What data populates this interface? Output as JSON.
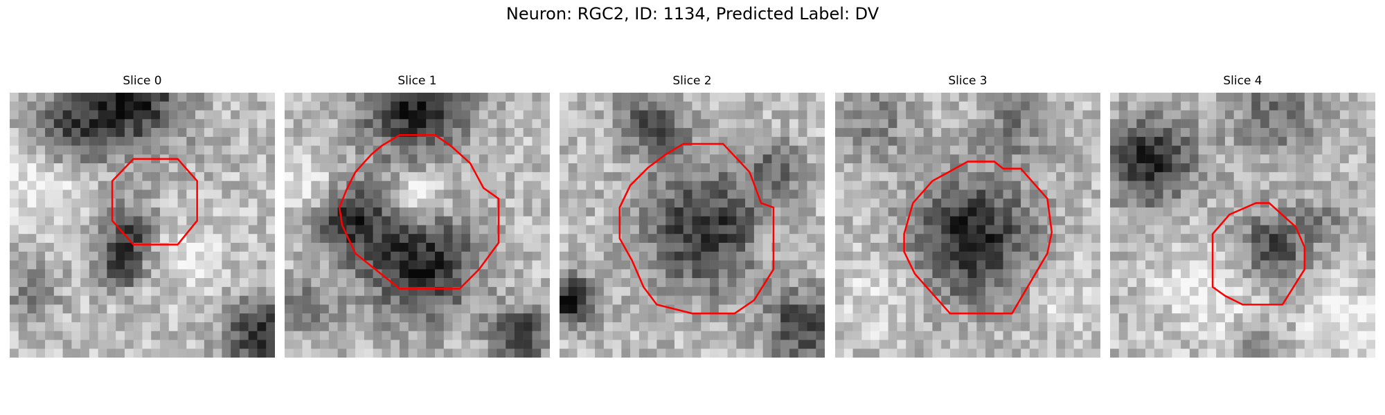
{
  "figure": {
    "title": "Neuron: RGC2, ID: 1134, Predicted Label: DV",
    "contour_color": "#ff0000"
  },
  "panels": [
    {
      "title": "Slice 0"
    },
    {
      "title": "Slice 1"
    },
    {
      "title": "Slice 2"
    },
    {
      "title": "Slice 3"
    },
    {
      "title": "Slice 4"
    }
  ]
}
